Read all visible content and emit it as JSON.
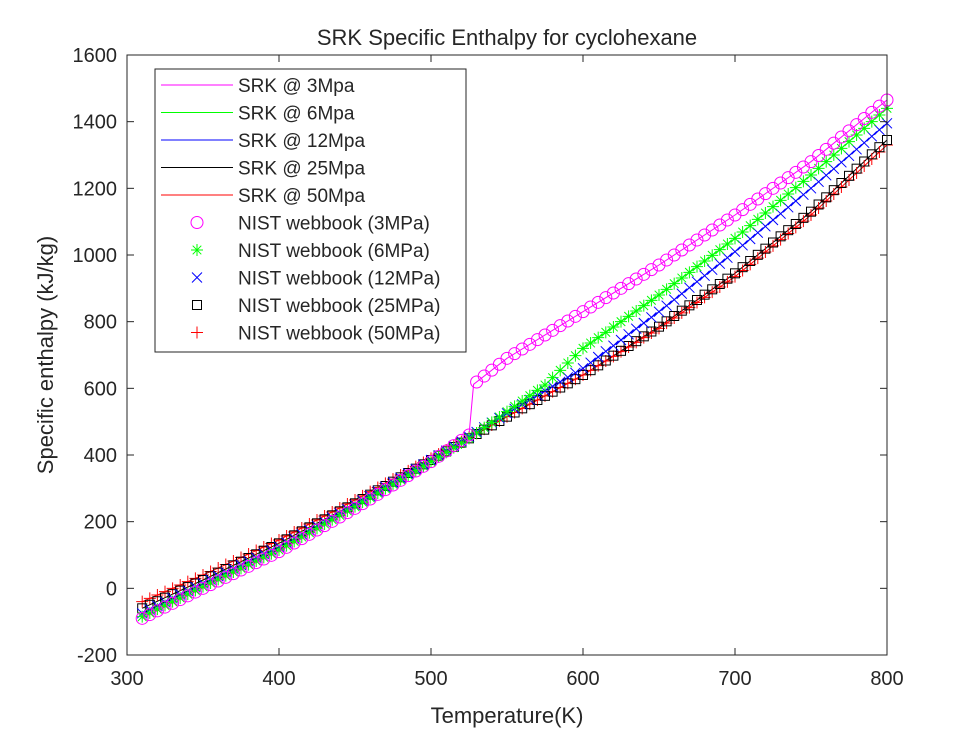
{
  "chart_data": {
    "type": "line",
    "title": "SRK Specific Enthalpy for cyclohexane",
    "xlabel": "Temperature(K)",
    "ylabel": "Specific enthalpy (kJ/kg)",
    "xlim": [
      300,
      800
    ],
    "ylim": [
      -200,
      1600
    ],
    "xticks": [
      300,
      400,
      500,
      600,
      700,
      800
    ],
    "yticks": [
      -200,
      0,
      200,
      400,
      600,
      800,
      1000,
      1200,
      1400,
      1600
    ],
    "grid": false,
    "legend_position": "top-left",
    "x_range": [
      310,
      800
    ],
    "x_step": 5,
    "lines": [
      {
        "name": "SRK @ 3Mpa",
        "color": "#ff00ff",
        "points": [
          [
            310,
            -90
          ],
          [
            350,
            0
          ],
          [
            400,
            110
          ],
          [
            450,
            240
          ],
          [
            500,
            380
          ],
          [
            525,
            460
          ],
          [
            528,
            612
          ],
          [
            550,
            690
          ],
          [
            600,
            830
          ],
          [
            650,
            970
          ],
          [
            700,
            1120
          ],
          [
            750,
            1280
          ],
          [
            800,
            1465
          ]
        ]
      },
      {
        "name": "SRK @ 6Mpa",
        "color": "#00ff00",
        "points": [
          [
            310,
            -85
          ],
          [
            350,
            5
          ],
          [
            400,
            115
          ],
          [
            450,
            245
          ],
          [
            500,
            380
          ],
          [
            525,
            450
          ],
          [
            550,
            530
          ],
          [
            575,
            610
          ],
          [
            600,
            720
          ],
          [
            650,
            880
          ],
          [
            700,
            1050
          ],
          [
            750,
            1240
          ],
          [
            800,
            1440
          ]
        ]
      },
      {
        "name": "SRK @ 12Mpa",
        "color": "#0000ff",
        "points": [
          [
            310,
            -75
          ],
          [
            350,
            15
          ],
          [
            400,
            125
          ],
          [
            450,
            250
          ],
          [
            500,
            385
          ],
          [
            550,
            525
          ],
          [
            600,
            660
          ],
          [
            650,
            830
          ],
          [
            700,
            1010
          ],
          [
            750,
            1200
          ],
          [
            800,
            1395
          ]
        ]
      },
      {
        "name": "SRK @ 25Mpa",
        "color": "#000000",
        "points": [
          [
            310,
            -60
          ],
          [
            350,
            25
          ],
          [
            400,
            135
          ],
          [
            450,
            255
          ],
          [
            500,
            385
          ],
          [
            550,
            515
          ],
          [
            600,
            640
          ],
          [
            650,
            785
          ],
          [
            700,
            945
          ],
          [
            750,
            1130
          ],
          [
            800,
            1345
          ]
        ]
      },
      {
        "name": "SRK @ 50Mpa",
        "color": "#ff0000",
        "points": [
          [
            310,
            -40
          ],
          [
            350,
            40
          ],
          [
            400,
            145
          ],
          [
            450,
            265
          ],
          [
            500,
            390
          ],
          [
            550,
            515
          ],
          [
            600,
            640
          ],
          [
            650,
            780
          ],
          [
            700,
            935
          ],
          [
            750,
            1120
          ],
          [
            800,
            1330
          ]
        ]
      }
    ],
    "markers": [
      {
        "name": "NIST webbook (3MPa)",
        "color": "#ff00ff",
        "symbol": "circle",
        "follows": "SRK @ 3Mpa"
      },
      {
        "name": "NIST webbook (6MPa)",
        "color": "#00ff00",
        "symbol": "asterisk",
        "follows": "SRK @ 6Mpa"
      },
      {
        "name": "NIST webbook (12MPa)",
        "color": "#0000ff",
        "symbol": "x",
        "follows": "SRK @ 12Mpa"
      },
      {
        "name": "NIST webbook (25MPa)",
        "color": "#000000",
        "symbol": "square",
        "follows": "SRK @ 25Mpa"
      },
      {
        "name": "NIST webbook (50MPa)",
        "color": "#ff0000",
        "symbol": "plus",
        "follows": "SRK @ 50Mpa"
      }
    ]
  }
}
